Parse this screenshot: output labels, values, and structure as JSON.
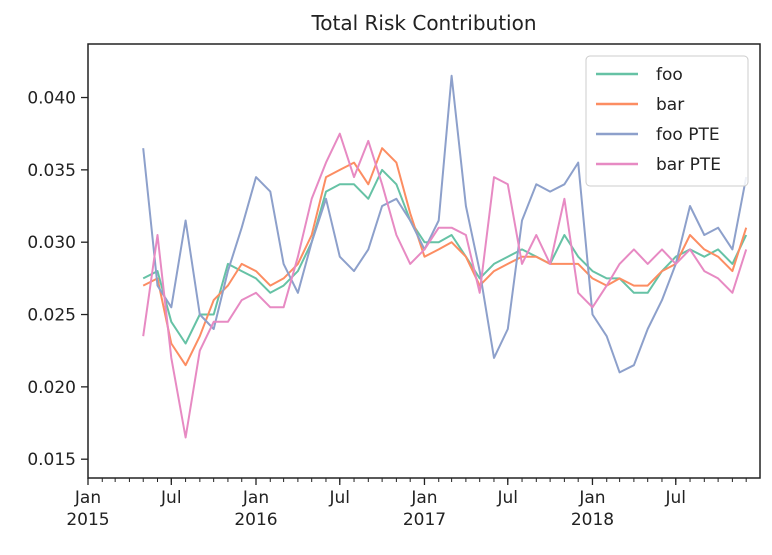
{
  "chart_data": {
    "type": "line",
    "title": "Total Risk Contribution",
    "xlabel": "",
    "ylabel": "",
    "x_range": [
      "2015-01-01",
      "2018-12-31"
    ],
    "ylim": [
      0.0137,
      0.0437
    ],
    "y_ticks": [
      0.015,
      0.02,
      0.025,
      0.03,
      0.035,
      0.04
    ],
    "y_tick_labels": [
      "0.015",
      "0.020",
      "0.025",
      "0.030",
      "0.035",
      "0.040"
    ],
    "x_major_ticks": [
      {
        "date": "2015-01-01",
        "line1": "Jan",
        "line2": "2015"
      },
      {
        "date": "2015-07-01",
        "line1": "Jul",
        "line2": ""
      },
      {
        "date": "2016-01-01",
        "line1": "Jan",
        "line2": "2016"
      },
      {
        "date": "2016-07-01",
        "line1": "Jul",
        "line2": ""
      },
      {
        "date": "2017-01-01",
        "line1": "Jan",
        "line2": "2017"
      },
      {
        "date": "2017-07-01",
        "line1": "Jul",
        "line2": ""
      },
      {
        "date": "2018-01-01",
        "line1": "Jan",
        "line2": "2018"
      },
      {
        "date": "2018-07-01",
        "line1": "Jul",
        "line2": ""
      }
    ],
    "grid": false,
    "legend_position": "top-right",
    "x": [
      "2015-05-01",
      "2015-06-01",
      "2015-07-01",
      "2015-08-01",
      "2015-09-01",
      "2015-10-01",
      "2015-11-01",
      "2015-12-01",
      "2016-01-01",
      "2016-02-01",
      "2016-03-01",
      "2016-04-01",
      "2016-05-01",
      "2016-06-01",
      "2016-07-01",
      "2016-08-01",
      "2016-09-01",
      "2016-10-01",
      "2016-11-01",
      "2016-12-01",
      "2017-01-01",
      "2017-02-01",
      "2017-03-01",
      "2017-04-01",
      "2017-05-01",
      "2017-06-01",
      "2017-07-01",
      "2017-08-01",
      "2017-09-01",
      "2017-10-01",
      "2017-11-01",
      "2017-12-01",
      "2018-01-01",
      "2018-02-01",
      "2018-03-01",
      "2018-04-01",
      "2018-05-01",
      "2018-06-01",
      "2018-07-01",
      "2018-08-01",
      "2018-09-01",
      "2018-10-01",
      "2018-11-01",
      "2018-12-01"
    ],
    "series": [
      {
        "name": "foo",
        "color": "#66c2a5",
        "values": [
          0.0275,
          0.028,
          0.0245,
          0.023,
          0.025,
          0.025,
          0.0285,
          0.028,
          0.0275,
          0.0265,
          0.027,
          0.028,
          0.03,
          0.0335,
          0.034,
          0.034,
          0.033,
          0.035,
          0.034,
          0.0315,
          0.03,
          0.03,
          0.0305,
          0.029,
          0.0275,
          0.0285,
          0.029,
          0.0295,
          0.029,
          0.0285,
          0.0305,
          0.029,
          0.028,
          0.0275,
          0.0275,
          0.0265,
          0.0265,
          0.028,
          0.029,
          0.0295,
          0.029,
          0.0295,
          0.0285,
          0.0305
        ]
      },
      {
        "name": "bar",
        "color": "#fc8d62",
        "values": [
          0.027,
          0.0275,
          0.023,
          0.0215,
          0.0235,
          0.026,
          0.027,
          0.0285,
          0.028,
          0.027,
          0.0275,
          0.0285,
          0.0305,
          0.0345,
          0.035,
          0.0355,
          0.034,
          0.0365,
          0.0355,
          0.032,
          0.029,
          0.0295,
          0.03,
          0.029,
          0.027,
          0.028,
          0.0285,
          0.029,
          0.029,
          0.0285,
          0.0285,
          0.0285,
          0.0275,
          0.027,
          0.0275,
          0.027,
          0.027,
          0.028,
          0.0285,
          0.0305,
          0.0295,
          0.029,
          0.028,
          0.031
        ]
      },
      {
        "name": "foo PTE",
        "color": "#8da0cb",
        "values": [
          0.0365,
          0.027,
          0.0255,
          0.0315,
          0.025,
          0.024,
          0.028,
          0.031,
          0.0345,
          0.0335,
          0.0285,
          0.0265,
          0.03,
          0.033,
          0.029,
          0.028,
          0.0295,
          0.0325,
          0.033,
          0.0315,
          0.0295,
          0.0315,
          0.0415,
          0.0325,
          0.028,
          0.022,
          0.024,
          0.0315,
          0.034,
          0.0335,
          0.034,
          0.0355,
          0.025,
          0.0235,
          0.021,
          0.0215,
          0.024,
          0.026,
          0.0285,
          0.0325,
          0.0305,
          0.031,
          0.0295,
          0.0345
        ]
      },
      {
        "name": "bar PTE",
        "color": "#e78ac3",
        "values": [
          0.0235,
          0.0305,
          0.022,
          0.0165,
          0.0225,
          0.0245,
          0.0245,
          0.026,
          0.0265,
          0.0255,
          0.0255,
          0.029,
          0.033,
          0.0355,
          0.0375,
          0.0345,
          0.037,
          0.034,
          0.0305,
          0.0285,
          0.0295,
          0.031,
          0.031,
          0.0305,
          0.0265,
          0.0345,
          0.034,
          0.0285,
          0.0305,
          0.0285,
          0.033,
          0.0265,
          0.0255,
          0.027,
          0.0285,
          0.0295,
          0.0285,
          0.0295,
          0.0285,
          0.0295,
          0.028,
          0.0275,
          0.0265,
          0.0295
        ]
      }
    ]
  }
}
